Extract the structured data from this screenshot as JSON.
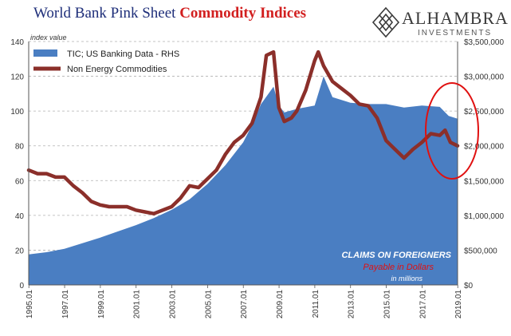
{
  "header": {
    "title_part1": "World Bank Pink Sheet ",
    "title_part2": "Commodity Indices"
  },
  "logo": {
    "name": "ALHAMBRA",
    "sub": "INVESTMENTS",
    "icon": "diamond-lattice-icon"
  },
  "colors": {
    "area": "#4a7ec2",
    "line": "#8b2f2a",
    "title_blue": "#1f2f7a",
    "title_red": "#d21f1f",
    "annotation_red": "#e01010",
    "grid": "#b0b0b0"
  },
  "chart_data": {
    "type": "line",
    "title": "World Bank Pink Sheet Commodity Indices",
    "left_axis_label": "index value",
    "ylim_left": [
      0,
      140
    ],
    "yticks_left": [
      "0",
      "20",
      "40",
      "60",
      "80",
      "100",
      "120",
      "140"
    ],
    "ylim_right": [
      0,
      3500000
    ],
    "yticks_right": [
      "$0",
      "$500,000",
      "$1,000,000",
      "$1,500,000",
      "$2,000,000",
      "$2,500,000",
      "$3,000,000",
      "$3,500,000"
    ],
    "xlim": [
      1995.0,
      2019.0
    ],
    "xticks": [
      "1995.01",
      "1997.01",
      "1999.01",
      "2001.01",
      "2003.01",
      "2005.01",
      "2007.01",
      "2009.01",
      "2011.01",
      "2013.01",
      "2015.01",
      "2017.01",
      "2019.01"
    ],
    "grid": true,
    "legend_position": "top-left",
    "series": [
      {
        "name": "TIC; US Banking Data - RHS",
        "kind": "area",
        "axis": "right",
        "x": [
          1995.0,
          1996.0,
          1997.0,
          1998.0,
          1999.0,
          2000.0,
          2001.0,
          2002.0,
          2003.0,
          2004.0,
          2005.0,
          2006.0,
          2007.0,
          2007.5,
          2008.0,
          2008.7,
          2009.0,
          2009.3,
          2010.0,
          2011.0,
          2011.5,
          2012.0,
          2013.0,
          2014.0,
          2015.0,
          2016.0,
          2017.0,
          2018.0,
          2018.5,
          2019.0
        ],
        "values": [
          440000,
          470000,
          520000,
          600000,
          680000,
          770000,
          860000,
          960000,
          1080000,
          1230000,
          1450000,
          1720000,
          2050000,
          2300000,
          2600000,
          2850000,
          2580000,
          2480000,
          2530000,
          2580000,
          3000000,
          2700000,
          2620000,
          2600000,
          2600000,
          2550000,
          2580000,
          2560000,
          2430000,
          2390000
        ]
      },
      {
        "name": "Non Energy Commodities",
        "kind": "line",
        "axis": "left",
        "x": [
          1995.0,
          1995.5,
          1996.0,
          1996.5,
          1997.0,
          1997.5,
          1998.0,
          1998.5,
          1999.0,
          1999.5,
          2000.0,
          2000.5,
          2001.0,
          2001.5,
          2002.0,
          2002.5,
          2003.0,
          2003.5,
          2004.0,
          2004.5,
          2005.0,
          2005.5,
          2006.0,
          2006.5,
          2007.0,
          2007.5,
          2008.0,
          2008.3,
          2008.7,
          2009.0,
          2009.3,
          2009.7,
          2010.0,
          2010.5,
          2011.0,
          2011.2,
          2011.5,
          2012.0,
          2012.5,
          2013.0,
          2013.5,
          2014.0,
          2014.5,
          2015.0,
          2015.5,
          2016.0,
          2016.5,
          2017.0,
          2017.5,
          2018.0,
          2018.3,
          2018.6,
          2019.0
        ],
        "values": [
          66,
          64,
          64,
          62,
          62,
          57,
          53,
          48,
          46,
          45,
          45,
          45,
          43,
          42,
          41,
          43,
          45,
          50,
          57,
          56,
          61,
          66,
          75,
          82,
          86,
          93,
          108,
          132,
          134,
          102,
          94,
          96,
          100,
          112,
          129,
          134,
          126,
          117,
          113,
          109,
          104,
          103,
          96,
          83,
          78,
          73,
          78,
          82,
          87,
          86,
          89,
          82,
          80
        ]
      }
    ],
    "annotations": [
      {
        "line1": "CLAIMS ON FOREIGNERS",
        "line2": "Payable in Dollars",
        "line3": "in millions"
      }
    ],
    "highlight": {
      "shape": "ellipse",
      "around": "2018.01-2019.01"
    }
  }
}
